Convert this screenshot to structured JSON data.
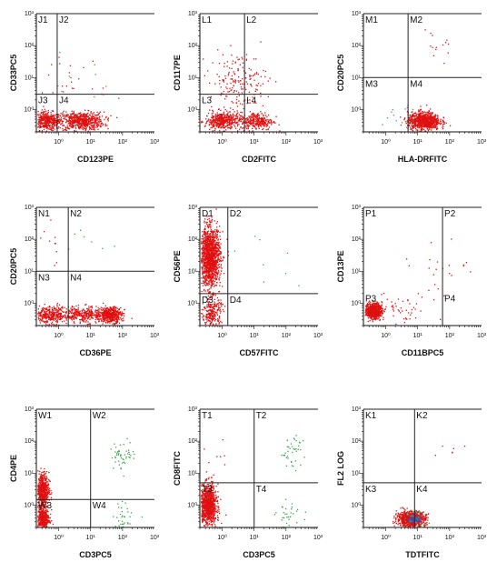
{
  "figure": {
    "ticks": {
      "y": [
        "10³",
        "10²",
        "10¹",
        "10⁰"
      ],
      "x": [
        "10⁰",
        "10¹",
        "10²",
        "10³"
      ]
    }
  },
  "colors": {
    "dots_primary": "#e01010",
    "dots_green": "#3aa34a",
    "dots_blue": "#3050d0",
    "axes": "#111111",
    "gates": "#222222"
  },
  "chart_data": [
    {
      "type": "scatter",
      "id": "J",
      "xlabel": "CD123PE",
      "ylabel": "CD33PC5",
      "quadrants": [
        "J1",
        "J2",
        "J3",
        "J4"
      ],
      "xlim": [
        0.2,
        1000
      ],
      "ylim": [
        0.2,
        1000
      ],
      "log_scale": true,
      "gate": {
        "x": 0.9,
        "y": 3.0
      },
      "populations": [
        {
          "x": 0.4,
          "y": 0.45,
          "sx": 0.22,
          "sy": 0.14,
          "n": 420,
          "color": "red"
        },
        {
          "x": 5.0,
          "y": 0.45,
          "sx": 0.35,
          "sy": 0.14,
          "n": 650,
          "color": "red"
        },
        {
          "x": 2.0,
          "y": 8.0,
          "sx": 0.6,
          "sy": 0.5,
          "n": 30,
          "color": "red"
        },
        {
          "x": 2.0,
          "y": 3.0,
          "sx": 0.7,
          "sy": 0.6,
          "n": 12,
          "color": "green"
        }
      ]
    },
    {
      "type": "scatter",
      "id": "L",
      "xlabel": "CD2FITC",
      "ylabel": "CD117PE",
      "quadrants": [
        "L1",
        "L2",
        "L3",
        "L4"
      ],
      "xlim": [
        0.2,
        1000
      ],
      "ylim": [
        0.2,
        1000
      ],
      "log_scale": true,
      "gate": {
        "x": 5.0,
        "y": 3.0
      },
      "populations": [
        {
          "x": 1.0,
          "y": 0.45,
          "sx": 0.28,
          "sy": 0.14,
          "n": 450,
          "color": "red"
        },
        {
          "x": 12.0,
          "y": 0.45,
          "sx": 0.25,
          "sy": 0.14,
          "n": 300,
          "color": "red"
        },
        {
          "x": 3.0,
          "y": 8.0,
          "sx": 0.45,
          "sy": 0.45,
          "n": 180,
          "color": "red"
        }
      ]
    },
    {
      "type": "scatter",
      "id": "M",
      "xlabel": "HLA-DRFITC",
      "ylabel": "CD20PC5",
      "quadrants": [
        "M1",
        "M2",
        "M3",
        "M4"
      ],
      "xlim": [
        0.2,
        1000
      ],
      "ylim": [
        0.2,
        1000
      ],
      "log_scale": true,
      "gate": {
        "x": 5.0,
        "y": 10.0
      },
      "populations": [
        {
          "x": 15.0,
          "y": 0.45,
          "sx": 0.25,
          "sy": 0.14,
          "n": 850,
          "color": "red"
        },
        {
          "x": 40.0,
          "y": 80.0,
          "sx": 0.3,
          "sy": 0.3,
          "n": 14,
          "color": "red"
        },
        {
          "x": 3.0,
          "y": 0.5,
          "sx": 0.4,
          "sy": 0.3,
          "n": 12,
          "color": "green"
        }
      ]
    },
    {
      "type": "scatter",
      "id": "N",
      "xlabel": "CD36PE",
      "ylabel": "CD20PC5",
      "quadrants": [
        "N1",
        "N2",
        "N3",
        "N4"
      ],
      "xlim": [
        0.2,
        1000
      ],
      "ylim": [
        0.2,
        1000
      ],
      "log_scale": true,
      "gate": {
        "x": 2.0,
        "y": 10.0
      },
      "populations": [
        {
          "x": 0.5,
          "y": 0.45,
          "sx": 0.3,
          "sy": 0.13,
          "n": 350,
          "color": "red"
        },
        {
          "x": 6.0,
          "y": 0.45,
          "sx": 0.35,
          "sy": 0.12,
          "n": 350,
          "color": "red"
        },
        {
          "x": 40.0,
          "y": 0.45,
          "sx": 0.18,
          "sy": 0.12,
          "n": 500,
          "color": "red"
        },
        {
          "x": 0.7,
          "y": 50.0,
          "sx": 0.4,
          "sy": 0.5,
          "n": 12,
          "color": "red"
        },
        {
          "x": 5.0,
          "y": 80.0,
          "sx": 0.5,
          "sy": 0.4,
          "n": 6,
          "color": "green"
        }
      ]
    },
    {
      "type": "scatter",
      "id": "D",
      "xlabel": "CD57FITC",
      "ylabel": "CD56PE",
      "quadrants": [
        "D1",
        "D2",
        "D3",
        "D4"
      ],
      "xlim": [
        0.2,
        1000
      ],
      "ylim": [
        0.2,
        1000
      ],
      "log_scale": true,
      "gate": {
        "x": 1.5,
        "y": 2.0
      },
      "populations": [
        {
          "x": 0.4,
          "y": 30.0,
          "sx": 0.16,
          "sy": 0.45,
          "n": 1500,
          "color": "red"
        },
        {
          "x": 0.45,
          "y": 0.5,
          "sx": 0.15,
          "sy": 0.25,
          "n": 260,
          "color": "red"
        },
        {
          "x": 20.0,
          "y": 30.0,
          "sx": 0.6,
          "sy": 0.5,
          "n": 8,
          "color": "green"
        }
      ]
    },
    {
      "type": "scatter",
      "id": "P",
      "xlabel": "CD11BPC5",
      "ylabel": "CD13PE",
      "quadrants": [
        "P1",
        "P2",
        "P3",
        "P4"
      ],
      "xlim": [
        0.2,
        1000
      ],
      "ylim": [
        0.2,
        1000
      ],
      "log_scale": true,
      "gate": {
        "x": 60.0,
        "y": null
      },
      "populations": [
        {
          "x": 0.4,
          "y": 0.6,
          "sx": 0.13,
          "sy": 0.12,
          "n": 700,
          "color": "red"
        },
        {
          "x": 3.0,
          "y": 0.6,
          "sx": 0.4,
          "sy": 0.2,
          "n": 45,
          "color": "red"
        },
        {
          "x": 15.0,
          "y": 5.0,
          "sx": 0.6,
          "sy": 0.6,
          "n": 18,
          "color": "red"
        },
        {
          "x": 150.0,
          "y": 15.0,
          "sx": 0.3,
          "sy": 0.3,
          "n": 8,
          "color": "red"
        }
      ]
    },
    {
      "type": "scatter",
      "id": "W",
      "xlabel": "CD3PC5",
      "ylabel": "CD4PE",
      "quadrants": [
        "W1",
        "W2",
        "W3",
        "W4"
      ],
      "xlim": [
        0.2,
        1000
      ],
      "ylim": [
        0.2,
        1000
      ],
      "log_scale": true,
      "gate": {
        "x": 10.0,
        "y": 1.5
      },
      "populations": [
        {
          "x": 0.3,
          "y": 3.0,
          "sx": 0.1,
          "sy": 0.28,
          "n": 550,
          "color": "red"
        },
        {
          "x": 0.3,
          "y": 0.4,
          "sx": 0.1,
          "sy": 0.18,
          "n": 420,
          "color": "red"
        },
        {
          "x": 100.0,
          "y": 40.0,
          "sx": 0.2,
          "sy": 0.22,
          "n": 50,
          "color": "green"
        },
        {
          "x": 120.0,
          "y": 0.5,
          "sx": 0.2,
          "sy": 0.2,
          "n": 30,
          "color": "green"
        }
      ]
    },
    {
      "type": "scatter",
      "id": "T",
      "xlabel": "CD3PC5",
      "ylabel": "CD8FITC",
      "quadrants": [
        "T1",
        "T2",
        "T3",
        "T4"
      ],
      "xlim": [
        0.2,
        1000
      ],
      "ylim": [
        0.2,
        1000
      ],
      "log_scale": true,
      "gate": {
        "x": 10.0,
        "y": 5.0
      },
      "populations": [
        {
          "x": 0.35,
          "y": 1.0,
          "sx": 0.13,
          "sy": 0.32,
          "n": 1000,
          "color": "red"
        },
        {
          "x": 0.5,
          "y": 20.0,
          "sx": 0.2,
          "sy": 0.4,
          "n": 10,
          "color": "red"
        },
        {
          "x": 150.0,
          "y": 50.0,
          "sx": 0.2,
          "sy": 0.25,
          "n": 40,
          "color": "green"
        },
        {
          "x": 120.0,
          "y": 0.5,
          "sx": 0.2,
          "sy": 0.2,
          "n": 30,
          "color": "green"
        }
      ]
    },
    {
      "type": "scatter",
      "id": "K",
      "xlabel": "TDTFITC",
      "ylabel": "FL2 LOG",
      "quadrants": [
        "K1",
        "K2",
        "K3",
        "K4"
      ],
      "xlim": [
        0.2,
        1000
      ],
      "ylim": [
        0.2,
        1000
      ],
      "log_scale": true,
      "gate": {
        "x": 8.0,
        "y": 5.0
      },
      "populations": [
        {
          "x": 6.0,
          "y": 0.38,
          "sx": 0.22,
          "sy": 0.12,
          "n": 850,
          "color": "red"
        },
        {
          "x": 8.0,
          "y": 0.38,
          "sx": 0.1,
          "sy": 0.06,
          "n": 90,
          "color": "blue"
        },
        {
          "x": 8.0,
          "y": 0.4,
          "sx": 0.2,
          "sy": 0.15,
          "n": 30,
          "color": "green"
        },
        {
          "x": 100.0,
          "y": 50.0,
          "sx": 0.3,
          "sy": 0.3,
          "n": 6,
          "color": "red"
        }
      ]
    }
  ]
}
